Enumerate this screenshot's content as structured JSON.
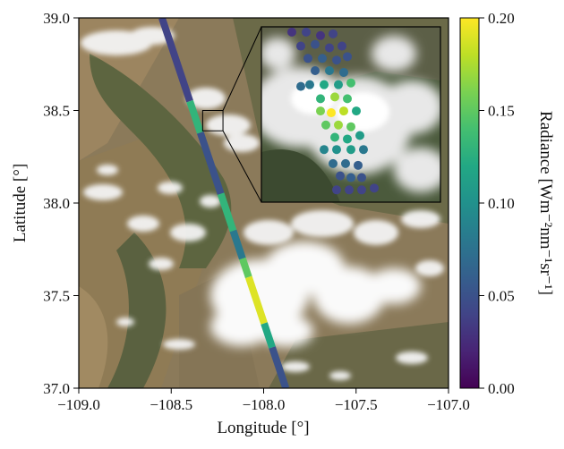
{
  "chart_data": {
    "type": "scatter",
    "background": "satellite true-color image (terrain with clouds)",
    "xlabel": "Longitude [°]",
    "ylabel": "Latitude [°]",
    "xlim": [
      -109.0,
      -107.0
    ],
    "ylim": [
      37.0,
      39.0
    ],
    "xticks": [
      "−109.0",
      "−108.5",
      "−108.0",
      "−107.5",
      "−107.0"
    ],
    "yticks": [
      "37.0",
      "37.5",
      "38.0",
      "38.5",
      "39.0"
    ],
    "swath": {
      "description": "narrow diagonal satellite track colored by radiance",
      "start": {
        "lon": -108.55,
        "lat": 39.0
      },
      "end": {
        "lon": -107.88,
        "lat": 37.0
      },
      "segments": [
        {
          "lat_from": 39.0,
          "lat_to": 38.55,
          "radiance": 0.04
        },
        {
          "lat_from": 38.55,
          "lat_to": 38.38,
          "radiance": 0.13
        },
        {
          "lat_from": 38.38,
          "lat_to": 38.05,
          "radiance": 0.05
        },
        {
          "lat_from": 38.05,
          "lat_to": 37.85,
          "radiance": 0.13
        },
        {
          "lat_from": 37.85,
          "lat_to": 37.7,
          "radiance": 0.08
        },
        {
          "lat_from": 37.7,
          "lat_to": 37.6,
          "radiance": 0.15
        },
        {
          "lat_from": 37.6,
          "lat_to": 37.35,
          "radiance": 0.19
        },
        {
          "lat_from": 37.35,
          "lat_to": 37.22,
          "radiance": 0.12
        },
        {
          "lat_from": 37.22,
          "lat_to": 37.0,
          "radiance": 0.05
        }
      ]
    },
    "inset": {
      "zoom_box": {
        "lon_min": -108.33,
        "lon_max": -108.22,
        "lat_min": 38.39,
        "lat_max": 38.5
      },
      "placement": "top-right inside map",
      "points": [
        [
          0.17,
          0.03,
          0.03
        ],
        [
          0.25,
          0.03,
          0.04
        ],
        [
          0.33,
          0.05,
          0.03
        ],
        [
          0.4,
          0.04,
          0.04
        ],
        [
          0.22,
          0.11,
          0.04
        ],
        [
          0.3,
          0.1,
          0.05
        ],
        [
          0.38,
          0.12,
          0.04
        ],
        [
          0.45,
          0.11,
          0.04
        ],
        [
          0.26,
          0.18,
          0.05
        ],
        [
          0.34,
          0.18,
          0.06
        ],
        [
          0.42,
          0.19,
          0.05
        ],
        [
          0.48,
          0.17,
          0.05
        ],
        [
          0.3,
          0.25,
          0.06
        ],
        [
          0.38,
          0.25,
          0.08
        ],
        [
          0.46,
          0.26,
          0.07
        ],
        [
          0.22,
          0.34,
          0.07
        ],
        [
          0.27,
          0.33,
          0.08
        ],
        [
          0.35,
          0.33,
          0.12
        ],
        [
          0.43,
          0.33,
          0.11
        ],
        [
          0.5,
          0.32,
          0.14
        ],
        [
          0.33,
          0.41,
          0.13
        ],
        [
          0.41,
          0.4,
          0.17
        ],
        [
          0.48,
          0.41,
          0.14
        ],
        [
          0.33,
          0.48,
          0.16
        ],
        [
          0.39,
          0.49,
          0.2
        ],
        [
          0.46,
          0.48,
          0.18
        ],
        [
          0.53,
          0.48,
          0.12
        ],
        [
          0.36,
          0.56,
          0.15
        ],
        [
          0.43,
          0.56,
          0.17
        ],
        [
          0.5,
          0.57,
          0.15
        ],
        [
          0.41,
          0.63,
          0.13
        ],
        [
          0.48,
          0.64,
          0.12
        ],
        [
          0.55,
          0.62,
          0.11
        ],
        [
          0.35,
          0.7,
          0.09
        ],
        [
          0.42,
          0.7,
          0.1
        ],
        [
          0.5,
          0.7,
          0.11
        ],
        [
          0.57,
          0.7,
          0.08
        ],
        [
          0.4,
          0.78,
          0.07
        ],
        [
          0.47,
          0.78,
          0.07
        ],
        [
          0.54,
          0.79,
          0.06
        ],
        [
          0.44,
          0.85,
          0.05
        ],
        [
          0.5,
          0.86,
          0.06
        ],
        [
          0.56,
          0.86,
          0.05
        ],
        [
          0.42,
          0.93,
          0.04
        ],
        [
          0.49,
          0.93,
          0.04
        ],
        [
          0.56,
          0.93,
          0.04
        ],
        [
          0.63,
          0.92,
          0.04
        ]
      ]
    },
    "colorbar": {
      "label": "Radiance [Wm⁻²nm⁻¹sr⁻¹]",
      "colormap": "viridis",
      "range": [
        0.0,
        0.2
      ],
      "ticks": [
        "0.00",
        "0.05",
        "0.10",
        "0.15",
        "0.20"
      ]
    }
  }
}
